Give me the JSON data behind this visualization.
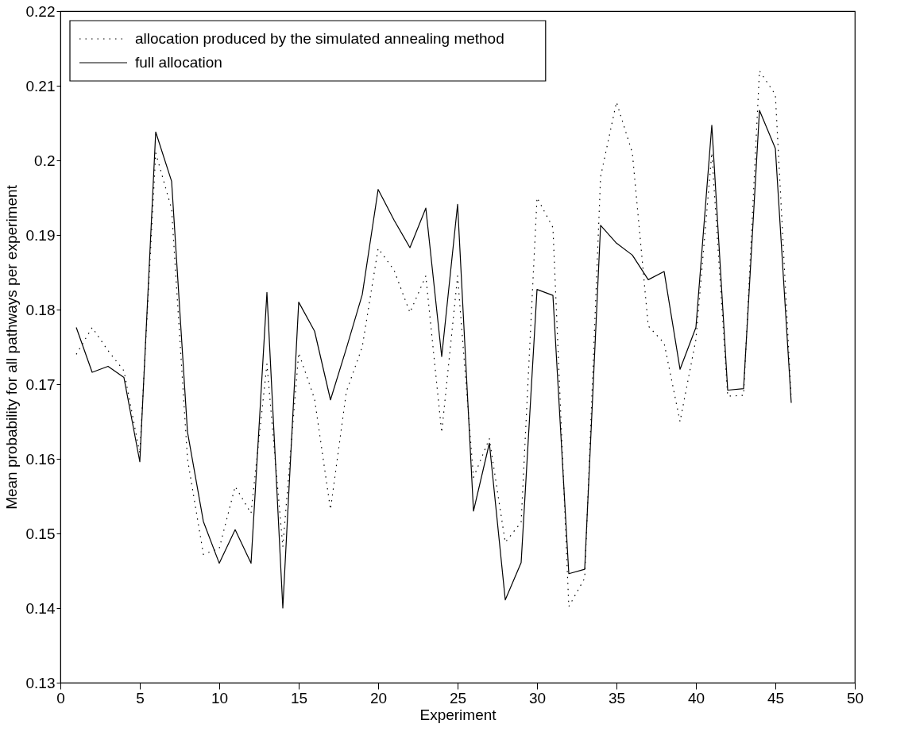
{
  "chart_data": {
    "type": "line",
    "xlabel": "Experiment",
    "ylabel": "Mean probability for all pathways per experiment",
    "x": [
      1,
      2,
      3,
      4,
      5,
      6,
      7,
      8,
      9,
      10,
      11,
      12,
      13,
      14,
      15,
      16,
      17,
      18,
      19,
      20,
      21,
      22,
      23,
      24,
      25,
      26,
      27,
      28,
      29,
      30,
      31,
      32,
      33,
      34,
      35,
      36,
      37,
      38,
      39,
      40,
      41,
      42,
      43,
      44,
      45,
      46
    ],
    "series": [
      {
        "name": "allocation produced by the simulated annealing method",
        "color": "#000000",
        "line_style": "dotted",
        "values": [
          0.174,
          0.1776,
          0.1745,
          0.1718,
          0.1607,
          0.201,
          0.1935,
          0.16,
          0.1472,
          0.148,
          0.1563,
          0.1527,
          0.1727,
          0.1482,
          0.1742,
          0.168,
          0.1532,
          0.169,
          0.175,
          0.1882,
          0.1853,
          0.1796,
          0.1845,
          0.1635,
          0.1845,
          0.1575,
          0.1627,
          0.1488,
          0.1515,
          0.195,
          0.191,
          0.1402,
          0.144,
          0.1978,
          0.2078,
          0.201,
          0.1778,
          0.1755,
          0.165,
          0.176,
          0.201,
          0.1684,
          0.1685,
          0.212,
          0.2088,
          0.168
        ]
      },
      {
        "name": "full allocation",
        "color": "#000000",
        "line_style": "solid",
        "values": [
          0.1776,
          0.1716,
          0.1724,
          0.1709,
          0.1596,
          0.2038,
          0.1972,
          0.1636,
          0.1516,
          0.146,
          0.1505,
          0.146,
          0.1823,
          0.14,
          0.181,
          0.1771,
          0.1679,
          0.1748,
          0.182,
          0.1961,
          0.192,
          0.1883,
          0.1936,
          0.1737,
          0.1941,
          0.153,
          0.1621,
          0.1411,
          0.1461,
          0.1827,
          0.1819,
          0.1446,
          0.1452,
          0.1913,
          0.1889,
          0.1873,
          0.184,
          0.1851,
          0.172,
          0.1776,
          0.2047,
          0.1692,
          0.1694,
          0.2067,
          0.2016,
          0.1675
        ]
      }
    ],
    "xlim": [
      0,
      50
    ],
    "xticks": [
      0,
      5,
      10,
      15,
      20,
      25,
      30,
      35,
      40,
      45,
      50
    ],
    "ylim": [
      0.13,
      0.22
    ],
    "yticks": [
      0.13,
      0.14,
      0.15,
      0.16,
      0.17,
      0.18,
      0.19,
      0.2,
      0.21,
      0.22
    ],
    "grid": false,
    "legend": "top left",
    "marker": "none"
  }
}
